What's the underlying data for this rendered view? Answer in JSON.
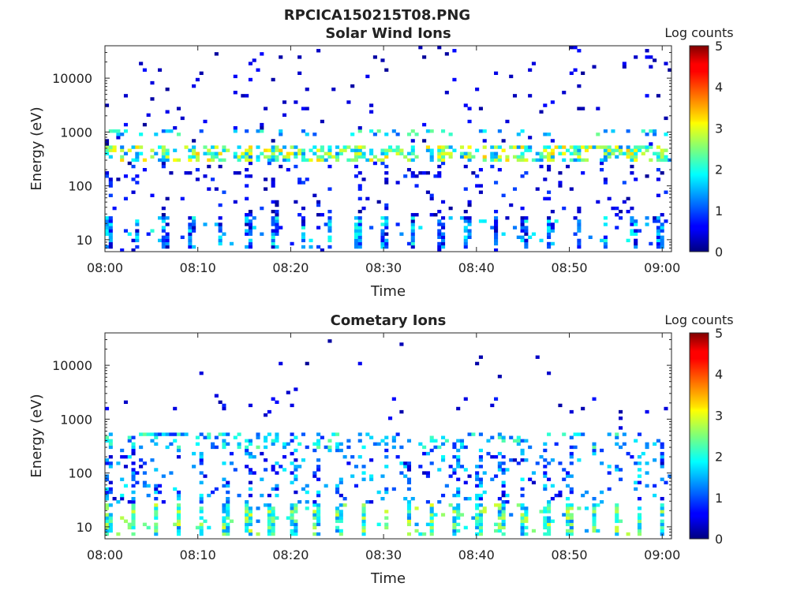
{
  "figure": {
    "title": "RPCICA150215T08.PNG"
  },
  "chart_data": [
    {
      "type": "heatmap",
      "title": "Solar Wind Ions",
      "xlabel": "Time",
      "ylabel": "Energy (eV)",
      "x_range": [
        "08:00",
        "09:01"
      ],
      "x_ticks": [
        "08:00",
        "08:10",
        "08:20",
        "08:30",
        "08:40",
        "08:50",
        "09:00"
      ],
      "y_scale": "log",
      "y_range": [
        6,
        40000
      ],
      "y_ticks": [
        10,
        100,
        1000,
        10000
      ],
      "y_tick_labels": [
        "10",
        "100",
        "1000",
        "10000"
      ],
      "colorbar": {
        "title": "Log counts",
        "range": [
          0,
          5
        ],
        "ticks": [
          "0",
          "1",
          "2",
          "3",
          "4",
          "5"
        ],
        "colormap": "jet"
      },
      "features": [
        {
          "description": "narrow band",
          "energy_eV": 1000,
          "log_counts": 2.0
        },
        {
          "description": "main band",
          "energy_eV": 400,
          "log_counts": 3.0
        },
        {
          "description": "low energy streaks",
          "energy_eV": [
            8,
            25
          ],
          "log_counts": 1.5
        }
      ]
    },
    {
      "type": "heatmap",
      "title": "Cometary Ions",
      "xlabel": "Time",
      "ylabel": "Energy (eV)",
      "x_range": [
        "08:00",
        "09:01"
      ],
      "x_ticks": [
        "08:00",
        "08:10",
        "08:20",
        "08:30",
        "08:40",
        "08:50",
        "09:00"
      ],
      "y_scale": "log",
      "y_range": [
        6,
        40000
      ],
      "y_ticks": [
        10,
        100,
        1000,
        10000
      ],
      "y_tick_labels": [
        "10",
        "100",
        "1000",
        "10000"
      ],
      "colorbar": {
        "title": "Log counts",
        "range": [
          0,
          5
        ],
        "ticks": [
          "0",
          "1",
          "2",
          "3",
          "4",
          "5"
        ],
        "colormap": "jet"
      },
      "features": [
        {
          "description": "band",
          "energy_eV": 400,
          "log_counts": 2.0
        },
        {
          "description": "low energy columns",
          "energy_eV": [
            8,
            25
          ],
          "log_counts": 2.5
        },
        {
          "description": "scattered counts",
          "energy_eV": [
            40,
            200
          ],
          "log_counts": 1.0
        }
      ]
    }
  ]
}
